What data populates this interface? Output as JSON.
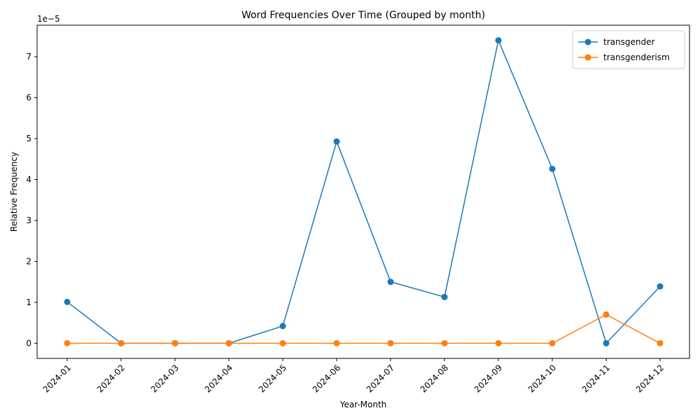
{
  "chart_data": {
    "type": "line",
    "title": "Word Frequencies Over Time (Grouped by month)",
    "xlabel": "Year-Month",
    "ylabel": "Relative Frequency",
    "y_offset_label": "1e−5",
    "categories": [
      "2024-01",
      "2024-02",
      "2024-03",
      "2024-04",
      "2024-05",
      "2024-06",
      "2024-07",
      "2024-08",
      "2024-09",
      "2024-10",
      "2024-11",
      "2024-12"
    ],
    "y_ticks": [
      0,
      1,
      2,
      3,
      4,
      5,
      6,
      7
    ],
    "y_tick_labels": [
      "0",
      "1",
      "2",
      "3",
      "4",
      "5",
      "6",
      "7"
    ],
    "ylim": [
      -0.37,
      7.77
    ],
    "y_scale_note": "values in units of 1e-5",
    "grid": false,
    "legend_position": "upper-right",
    "series": [
      {
        "name": "transgender",
        "color": "#1f77b4",
        "values": [
          1.01,
          0.0,
          0.0,
          0.0,
          0.42,
          4.93,
          1.5,
          1.13,
          7.4,
          4.26,
          0.0,
          1.39
        ]
      },
      {
        "name": "transgenderism",
        "color": "#ff7f0e",
        "values": [
          0.0,
          0.0,
          0.0,
          0.0,
          0.0,
          0.0,
          0.0,
          0.0,
          0.0,
          0.0,
          0.7,
          0.0
        ]
      }
    ]
  }
}
